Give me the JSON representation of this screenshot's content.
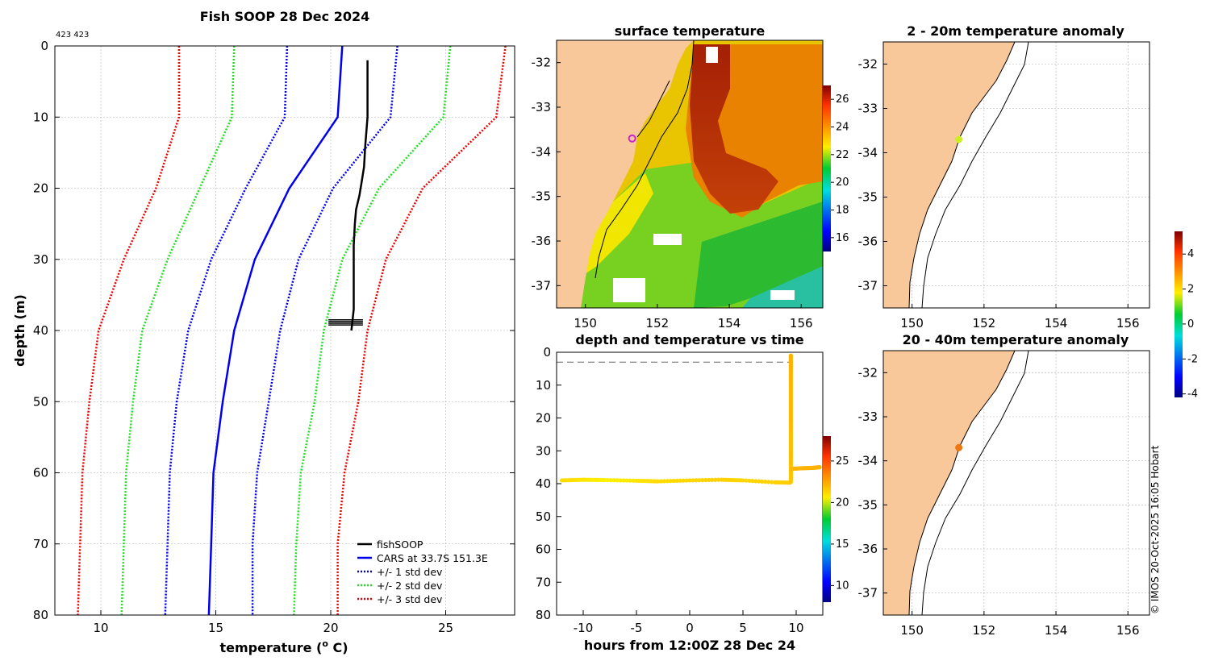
{
  "colors": {
    "land": "#f8c89a",
    "fish": "#000000",
    "cars": "#0000ee",
    "std1": "#0000ee",
    "std2": "#22dd22",
    "std3": "#ee0000",
    "grid": "#b0b0b0",
    "marker_sst": "#cc22cc",
    "marker_anom1": "#ccee22",
    "marker_anom2": "#ee7711"
  },
  "credit": "© IMOS 20-Oct-2025 16:05 Hobart",
  "chart_data": [
    {
      "id": "profile",
      "type": "line",
      "title": "Fish SOOP 28 Dec 2024",
      "id_label": "423 423",
      "xlabel_main": "temperature (",
      "xlabel_sup": "o",
      "xlabel_end": " C)",
      "ylabel": "depth (m)",
      "xlim": [
        8,
        28
      ],
      "ylim": [
        0,
        80
      ],
      "xticks": [
        10,
        15,
        20,
        25
      ],
      "yticks": [
        0,
        10,
        20,
        30,
        40,
        50,
        60,
        70,
        80
      ],
      "legend": [
        "fishSOOP",
        "CARS at 33.7S 151.3E",
        "+/- 1 std dev",
        "+/- 2 std dev",
        "+/- 3 std dev"
      ],
      "depth": [
        0,
        10,
        20,
        30,
        40,
        50,
        60,
        70,
        80
      ],
      "cars": [
        20.5,
        20.3,
        18.2,
        16.7,
        15.8,
        15.3,
        14.9,
        14.8,
        14.7
      ],
      "std1_low": [
        18.1,
        18.0,
        16.3,
        14.8,
        13.8,
        13.3,
        13.0,
        12.9,
        12.8
      ],
      "std1_high": [
        22.9,
        22.6,
        20.1,
        18.6,
        17.8,
        17.3,
        16.8,
        16.6,
        16.6
      ],
      "std2_low": [
        15.8,
        15.7,
        14.3,
        12.9,
        11.8,
        11.4,
        11.1,
        11.0,
        10.9
      ],
      "std2_high": [
        25.2,
        24.9,
        22.1,
        20.5,
        19.7,
        19.3,
        18.7,
        18.5,
        18.4
      ],
      "std3_low": [
        13.4,
        13.4,
        12.4,
        11.0,
        9.9,
        9.5,
        9.2,
        9.1,
        9.0
      ],
      "std3_high": [
        27.6,
        27.2,
        24.0,
        22.4,
        21.6,
        21.2,
        20.6,
        20.3,
        20.3
      ],
      "fish_t": [
        21.6,
        21.6,
        21.6,
        21.5,
        21.45,
        21.35,
        21.25,
        21.1,
        21.05,
        21.0,
        21.0,
        21.0,
        21.0,
        20.95,
        20.9
      ],
      "fish_d": [
        2,
        5,
        10,
        14,
        17,
        19,
        21,
        23,
        25,
        28,
        32,
        35,
        37,
        38.5,
        40
      ],
      "fish_burst_low": [
        19.9,
        21.4
      ],
      "fish_burst_depth": [
        38.5,
        39.8
      ]
    },
    {
      "id": "sst",
      "type": "heatmap",
      "title": "surface temperature",
      "xlim": [
        149.2,
        156.6
      ],
      "ylim": [
        -37.5,
        -31.5
      ],
      "xticks": [
        150,
        152,
        154,
        156
      ],
      "yticks": [
        -32,
        -33,
        -34,
        -35,
        -36,
        -37
      ],
      "clim": [
        15,
        27
      ],
      "cticks": [
        16,
        18,
        20,
        22,
        24,
        26
      ],
      "marker": [
        151.3,
        -33.7
      ]
    },
    {
      "id": "anom1",
      "type": "scatter",
      "title": "2 - 20m temperature anomaly",
      "xlim": [
        149.2,
        156.6
      ],
      "ylim": [
        -37.5,
        -31.5
      ],
      "xticks": [
        150,
        152,
        154,
        156
      ],
      "yticks": [
        -32,
        -33,
        -34,
        -35,
        -36,
        -37
      ],
      "marker": [
        151.3,
        -33.7
      ],
      "value": 1.5
    },
    {
      "id": "anom2",
      "type": "scatter",
      "title": "20 - 40m temperature anomaly",
      "xlim": [
        149.2,
        156.6
      ],
      "ylim": [
        -37.5,
        -31.5
      ],
      "xticks": [
        150,
        152,
        154,
        156
      ],
      "yticks": [
        -32,
        -33,
        -34,
        -35,
        -36,
        -37
      ],
      "marker": [
        151.3,
        -33.7
      ],
      "value": 3.2
    },
    {
      "id": "anom_cbar",
      "type": "heatmap",
      "clim": [
        -4.2,
        5.3
      ],
      "cticks": [
        -4,
        -2,
        0,
        2,
        4
      ]
    },
    {
      "id": "timeseries",
      "type": "scatter",
      "title": "depth and temperature vs time",
      "xlabel": "hours from 12:00Z 28 Dec 24",
      "xlim": [
        -12.5,
        12.5
      ],
      "ylim": [
        0,
        80
      ],
      "xticks": [
        -10,
        -5,
        0,
        5,
        10
      ],
      "yticks": [
        0,
        10,
        20,
        30,
        40,
        50,
        60,
        70,
        80
      ],
      "clim": [
        8,
        28
      ],
      "cticks": [
        10,
        15,
        20,
        25
      ],
      "surface_ref_depth": 3,
      "segments": [
        {
          "h": [
            -12.0,
            -10.0,
            -8.0,
            -5.0,
            -3.0,
            0.0,
            3.0,
            5.0,
            8.0,
            9.4
          ],
          "d": [
            39.0,
            38.8,
            38.9,
            39.1,
            39.3,
            39.0,
            38.8,
            39.0,
            39.6,
            39.7
          ],
          "t": [
            21.2,
            21.0,
            20.8,
            21.0,
            21.2,
            21.3,
            21.4,
            21.3,
            21.4,
            21.5
          ]
        },
        {
          "h": [
            9.5,
            9.5,
            9.5,
            9.5,
            9.5,
            9.5,
            9.5,
            9.5,
            9.5
          ],
          "d": [
            39.5,
            35,
            30,
            25,
            20,
            15,
            10,
            5,
            1
          ],
          "t": [
            21.6,
            21.7,
            21.8,
            21.8,
            21.9,
            21.9,
            21.9,
            22.0,
            22.0
          ]
        },
        {
          "h": [
            9.6,
            10.5,
            11.5,
            12.2
          ],
          "d": [
            35.5,
            35.3,
            35.2,
            35.0
          ],
          "t": [
            21.9,
            22.0,
            22.0,
            22.0
          ]
        }
      ]
    }
  ]
}
